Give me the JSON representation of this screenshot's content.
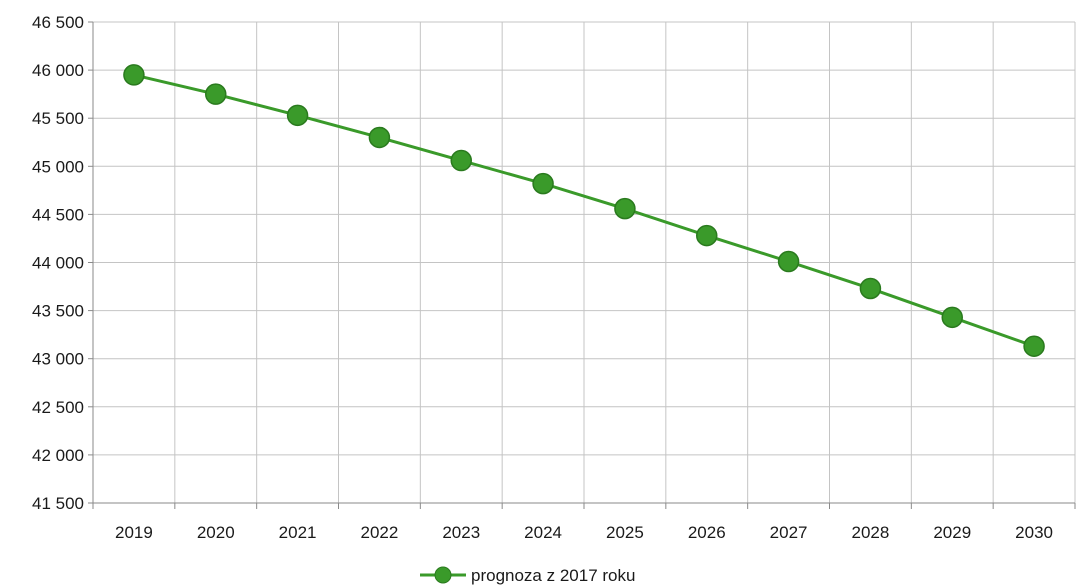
{
  "chart_data": {
    "type": "line",
    "x": [
      "2019",
      "2020",
      "2021",
      "2022",
      "2023",
      "2024",
      "2025",
      "2026",
      "2027",
      "2028",
      "2029",
      "2030"
    ],
    "y_ticks": [
      "41 500",
      "42 000",
      "42 500",
      "43 000",
      "43 500",
      "44 000",
      "44 500",
      "45 000",
      "45 500",
      "46 000",
      "46 500"
    ],
    "ylim": [
      41500,
      46500
    ],
    "grid": true,
    "legend_position": "bottom",
    "series": [
      {
        "name": "prognoza z 2017 roku",
        "color": "#3a9a2a",
        "values": [
          45950,
          45750,
          45530,
          45300,
          45060,
          44820,
          44560,
          44280,
          44010,
          43730,
          43430,
          43130
        ]
      }
    ]
  }
}
